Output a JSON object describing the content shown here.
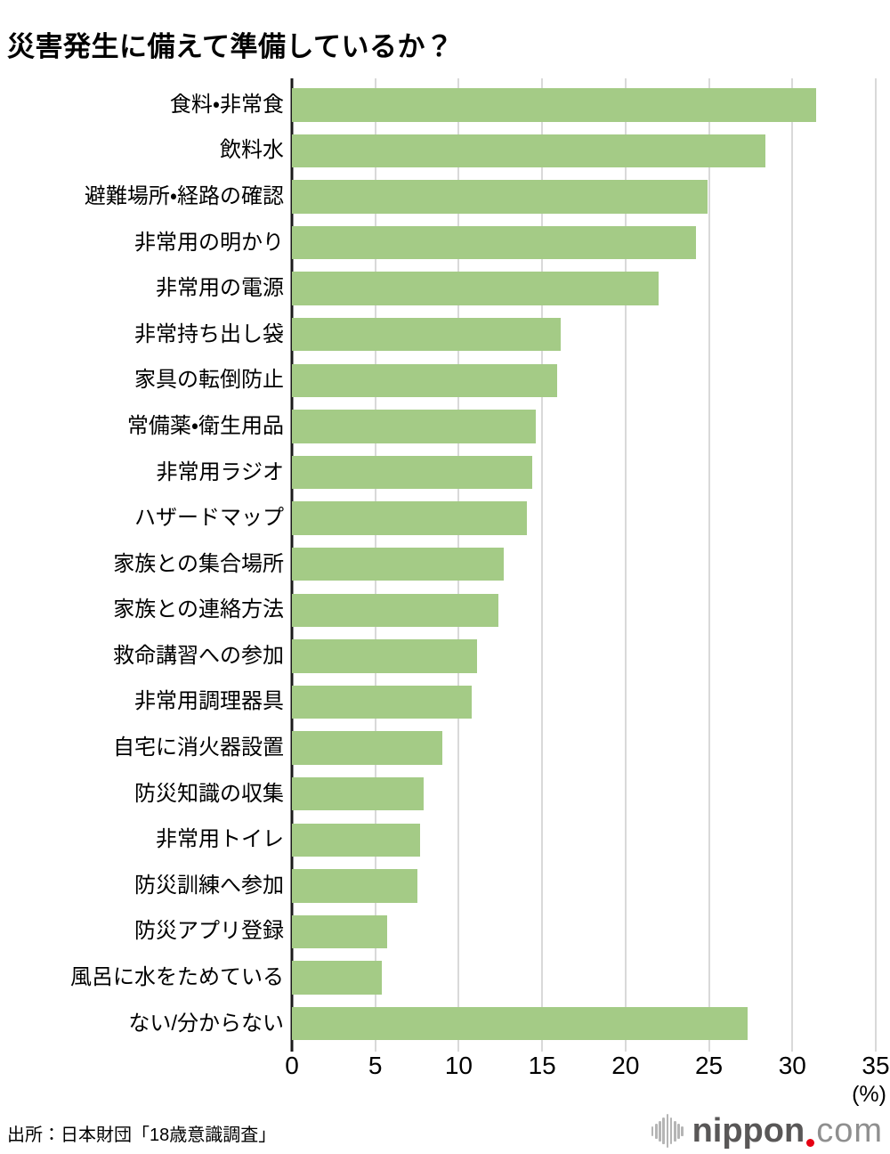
{
  "page": {
    "title": "災害発生に備えて準備しているか？",
    "source": "出所：日本財団「18歳意識調査」"
  },
  "chart_data": {
    "type": "bar",
    "orientation": "horizontal",
    "title": "災害発生に備えて準備しているか？",
    "categories": [
      "食料・非常食",
      "飲料水",
      "避難場所・経路の確認",
      "非常用の明かり",
      "非常用の電源",
      "非常持ち出し袋",
      "家具の転倒防止",
      "常備薬・衛生用品",
      "非常用ラジオ",
      "ハザードマップ",
      "家族との集合場所",
      "家族との連絡方法",
      "救命講習への参加",
      "非常用調理器具",
      "自宅に消火器設置",
      "防災知識の収集",
      "非常用トイレ",
      "防災訓練へ参加",
      "防災アプリ登録",
      "風呂に水をためている",
      "ない/分からない"
    ],
    "values": [
      31.4,
      28.4,
      24.9,
      24.2,
      22.0,
      16.1,
      15.9,
      14.6,
      14.4,
      14.1,
      12.7,
      12.4,
      11.1,
      10.8,
      9.0,
      7.9,
      7.7,
      7.5,
      5.7,
      5.4,
      27.3
    ],
    "xlabel": "(%)",
    "xlim": [
      0,
      35
    ],
    "xtick_labels": [
      "0",
      "5",
      "10",
      "15",
      "20",
      "25",
      "30",
      "35"
    ],
    "grid": true,
    "legend": "none",
    "bar_color": "#a4cb86",
    "gridline_color": "#d9d9d9",
    "axis_color": "#1a1a1a"
  },
  "logo": {
    "name": "nippon.com",
    "part_bold": "nippon",
    "part_light": "com",
    "bold_color": "#595757",
    "dot_color": "#e60012",
    "light_color": "#8f8f8f",
    "icon_color": "#b5b5b5"
  }
}
